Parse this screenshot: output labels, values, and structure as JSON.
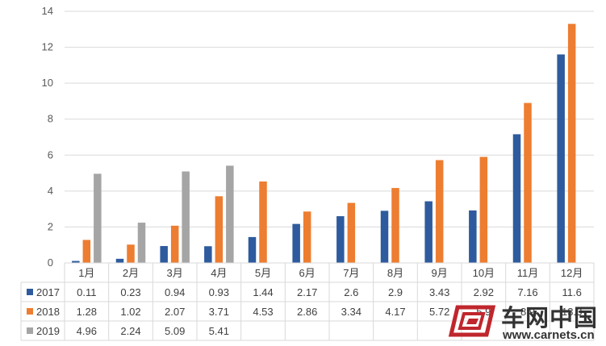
{
  "chart_data": {
    "type": "bar",
    "categories": [
      "1月",
      "2月",
      "3月",
      "4月",
      "5月",
      "6月",
      "7月",
      "8月",
      "9月",
      "10月",
      "11月",
      "12月"
    ],
    "series": [
      {
        "name": "2017",
        "color": "#2e5b9e",
        "values": [
          0.11,
          0.23,
          0.94,
          0.93,
          1.44,
          2.17,
          2.6,
          2.9,
          3.43,
          2.92,
          7.16,
          11.6
        ],
        "labels": [
          "0.11",
          "0.23",
          "0.94",
          "0.93",
          "1.44",
          "2.17",
          "2.6",
          "2.9",
          "3.43",
          "2.92",
          "7.16",
          "11.6"
        ]
      },
      {
        "name": "2018",
        "color": "#ed7d31",
        "values": [
          1.28,
          1.02,
          2.07,
          3.71,
          4.53,
          2.86,
          3.34,
          4.17,
          5.72,
          5.9,
          8.9,
          13.3
        ],
        "labels": [
          "1.28",
          "1.02",
          "2.07",
          "3.71",
          "4.53",
          "2.86",
          "3.34",
          "4.17",
          "5.72",
          "5.9",
          "8.9",
          "13.3"
        ]
      },
      {
        "name": "2019",
        "color": "#a5a5a5",
        "values": [
          4.96,
          2.24,
          5.09,
          5.41,
          null,
          null,
          null,
          null,
          null,
          null,
          null,
          null
        ],
        "labels": [
          "4.96",
          "2.24",
          "5.09",
          "5.41",
          "",
          "",
          "",
          "",
          "",
          "",
          "",
          ""
        ]
      }
    ],
    "yticks": [
      "0",
      "2",
      "4",
      "6",
      "8",
      "10",
      "12",
      "14"
    ],
    "ylim": [
      0,
      14
    ],
    "grid": true,
    "legend": "data-table"
  },
  "watermark": {
    "text_cn": "车网中国",
    "url": "www.carnets.cn"
  }
}
